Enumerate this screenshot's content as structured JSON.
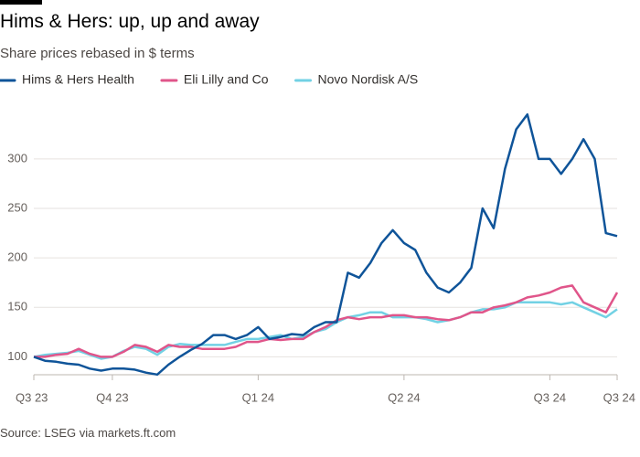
{
  "chart_data": {
    "type": "line",
    "title": "Hims & Hers: up, up and away",
    "subtitle": "Share prices rebased in $ terms",
    "source": "Source: LSEG via markets.ft.com",
    "categories": [
      "Q3 23",
      null,
      null,
      null,
      null,
      null,
      null,
      "Q4 23",
      null,
      null,
      null,
      null,
      null,
      null,
      null,
      null,
      null,
      null,
      null,
      null,
      "Q1 24",
      null,
      null,
      null,
      null,
      null,
      null,
      null,
      null,
      null,
      null,
      null,
      null,
      "Q2 24",
      null,
      null,
      null,
      null,
      null,
      null,
      null,
      null,
      null,
      null,
      null,
      null,
      "Q3 24",
      null,
      null,
      null,
      null,
      null,
      "Q3 24"
    ],
    "series": [
      {
        "name": "Hims & Hers Health",
        "color": "#0f5499",
        "values": [
          100,
          96,
          95,
          93,
          92,
          88,
          86,
          88,
          88,
          87,
          84,
          82,
          92,
          100,
          107,
          113,
          122,
          122,
          118,
          122,
          130,
          118,
          120,
          123,
          122,
          130,
          135,
          135,
          185,
          180,
          195,
          215,
          228,
          215,
          208,
          185,
          170,
          165,
          175,
          190,
          250,
          230,
          290,
          330,
          345,
          300,
          300,
          285,
          300,
          320,
          300,
          225,
          222
        ]
      },
      {
        "name": "Eli Lilly and Co",
        "color": "#e0558a",
        "values": [
          100,
          100,
          102,
          103,
          108,
          103,
          100,
          100,
          105,
          112,
          110,
          105,
          112,
          110,
          110,
          108,
          108,
          108,
          110,
          115,
          115,
          118,
          117,
          118,
          118,
          125,
          130,
          137,
          140,
          138,
          140,
          140,
          142,
          142,
          140,
          140,
          138,
          137,
          140,
          145,
          145,
          150,
          152,
          155,
          160,
          162,
          165,
          170,
          172,
          155,
          150,
          145,
          165
        ]
      },
      {
        "name": "Novo Nordisk A/S",
        "color": "#72d1e4",
        "values": [
          100,
          102,
          103,
          104,
          106,
          102,
          98,
          100,
          106,
          110,
          108,
          102,
          110,
          113,
          112,
          112,
          112,
          112,
          115,
          118,
          118,
          120,
          122,
          118,
          120,
          125,
          128,
          135,
          140,
          142,
          145,
          145,
          140,
          140,
          140,
          138,
          135,
          137,
          140,
          145,
          148,
          148,
          150,
          155,
          155,
          155,
          155,
          153,
          155,
          150,
          145,
          140,
          148
        ]
      }
    ],
    "ylim": [
      80,
      360
    ],
    "yticks": [
      100,
      150,
      200,
      250,
      300
    ],
    "grid": true
  }
}
